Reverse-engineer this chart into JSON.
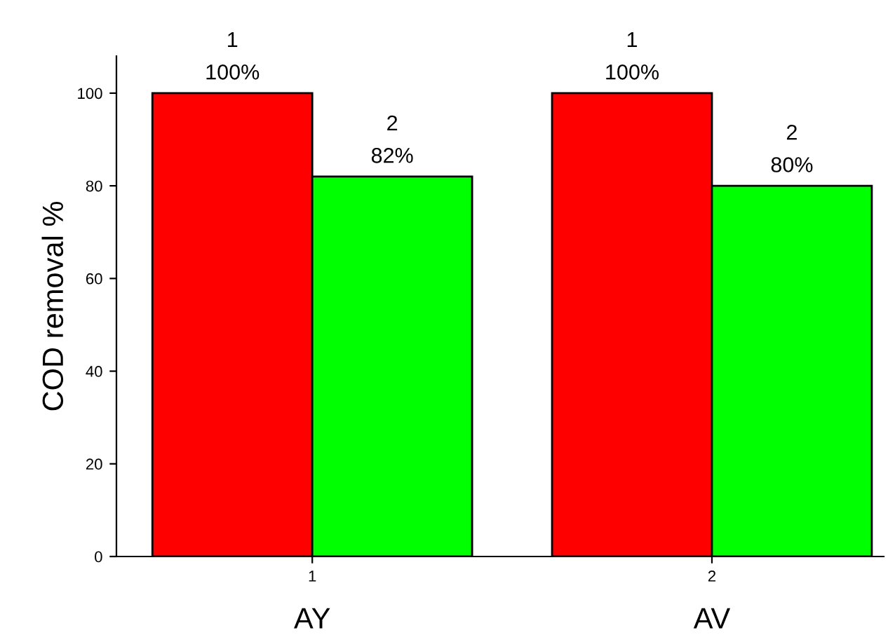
{
  "chart_data": {
    "type": "bar",
    "ylabel": "COD removal %",
    "categories": [
      "1",
      "2"
    ],
    "series": [
      {
        "name": "1",
        "color": "#ff0000",
        "values": [
          100,
          100
        ],
        "value_labels": [
          "100%",
          "100%"
        ]
      },
      {
        "name": "2",
        "color": "#00ff00",
        "values": [
          82,
          80
        ],
        "value_labels": [
          "82%",
          "80%"
        ]
      }
    ],
    "annotations": [
      "AY",
      "AV"
    ],
    "ylim": [
      0,
      108
    ],
    "yticks": [
      0,
      20,
      40,
      60,
      80,
      100
    ],
    "grid": false,
    "legend": false
  }
}
